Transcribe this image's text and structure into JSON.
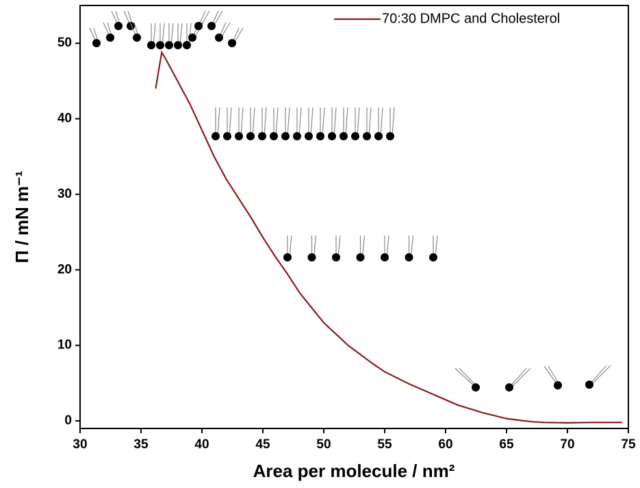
{
  "chart_data": {
    "type": "line",
    "xlabel": "Area per molecule / nm²",
    "ylabel": "Π / mN m⁻¹",
    "xlim": [
      30,
      75
    ],
    "xticks": [
      30,
      35,
      40,
      45,
      50,
      55,
      60,
      65,
      70,
      75
    ],
    "ylim": [
      -1,
      55
    ],
    "yticks": [
      0,
      10,
      20,
      30,
      40,
      50
    ],
    "legend": "top-right",
    "series": [
      {
        "name": "70:30 DMPC and Cholesterol",
        "color": "#8b1a1a",
        "x": [
          36.2,
          36.7,
          37,
          38,
          39,
          40,
          41,
          42,
          43,
          44,
          45,
          46,
          47,
          48,
          49,
          50,
          51,
          52,
          53,
          54,
          55,
          56,
          57,
          58,
          59,
          60,
          61,
          62,
          63,
          64,
          65,
          66,
          67,
          68,
          70,
          72,
          74.5
        ],
        "values": [
          44,
          48.8,
          48,
          45,
          42,
          38.5,
          35,
          32,
          29.5,
          27,
          24.3,
          21.8,
          19.5,
          17,
          15,
          13,
          11.5,
          10,
          8.8,
          7.6,
          6.5,
          5.7,
          4.9,
          4.2,
          3.5,
          2.8,
          2.1,
          1.6,
          1.1,
          0.7,
          0.3,
          0.1,
          -0.1,
          -0.2,
          -0.25,
          -0.2,
          -0.2
        ]
      }
    ]
  }
}
